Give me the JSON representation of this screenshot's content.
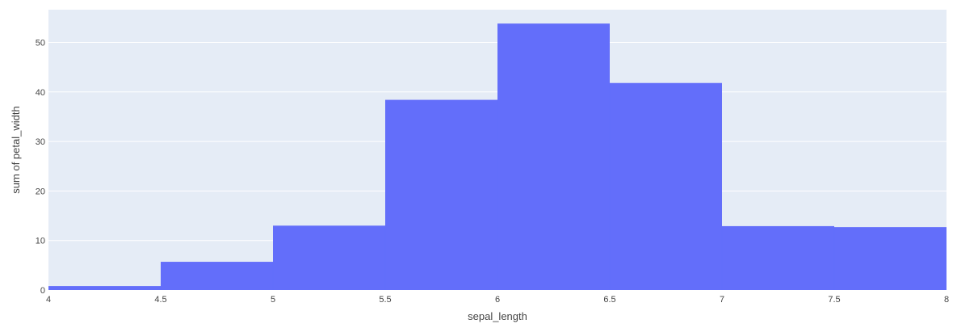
{
  "chart_data": {
    "type": "bar",
    "subtype": "histogram",
    "xlabel": "sepal_length",
    "ylabel": "sum of petal_width",
    "xlim": [
      4,
      8
    ],
    "ylim": [
      0,
      56.6
    ],
    "x_ticks": [
      {
        "value": 4,
        "label": "4"
      },
      {
        "value": 4.5,
        "label": "4.5"
      },
      {
        "value": 5,
        "label": "5"
      },
      {
        "value": 5.5,
        "label": "5.5"
      },
      {
        "value": 6,
        "label": "6"
      },
      {
        "value": 6.5,
        "label": "6.5"
      },
      {
        "value": 7,
        "label": "7"
      },
      {
        "value": 7.5,
        "label": "7.5"
      },
      {
        "value": 8,
        "label": "8"
      }
    ],
    "y_ticks": [
      {
        "value": 0,
        "label": "0"
      },
      {
        "value": 10,
        "label": "10"
      },
      {
        "value": 20,
        "label": "20"
      },
      {
        "value": 30,
        "label": "30"
      },
      {
        "value": 40,
        "label": "40"
      },
      {
        "value": 50,
        "label": "50"
      }
    ],
    "bins": [
      {
        "start": 4,
        "end": 4.5,
        "value": 0.8
      },
      {
        "start": 4.5,
        "end": 5,
        "value": 5.7
      },
      {
        "start": 5,
        "end": 5.5,
        "value": 13.0
      },
      {
        "start": 5.5,
        "end": 6,
        "value": 38.4
      },
      {
        "start": 6,
        "end": 6.5,
        "value": 53.8
      },
      {
        "start": 6.5,
        "end": 7,
        "value": 41.8
      },
      {
        "start": 7,
        "end": 7.5,
        "value": 12.9
      },
      {
        "start": 7.5,
        "end": 8,
        "value": 12.7
      }
    ],
    "grid": true,
    "legend": "none",
    "colors": {
      "bar": "#636efa",
      "plot_background": "#e5ecf6",
      "grid": "#ffffff",
      "text": "#444444"
    }
  }
}
